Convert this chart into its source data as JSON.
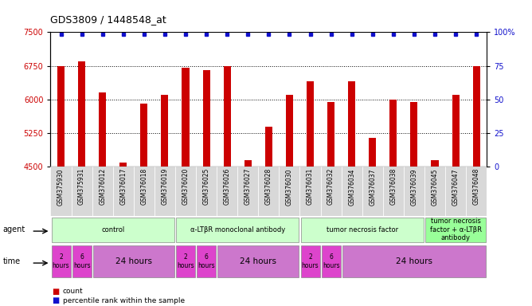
{
  "title": "GDS3809 / 1448548_at",
  "samples": [
    "GSM375930",
    "GSM375931",
    "GSM376012",
    "GSM376017",
    "GSM376018",
    "GSM376019",
    "GSM376020",
    "GSM376025",
    "GSM376026",
    "GSM376027",
    "GSM376028",
    "GSM376030",
    "GSM376031",
    "GSM376032",
    "GSM376034",
    "GSM376037",
    "GSM376038",
    "GSM376039",
    "GSM376045",
    "GSM376047",
    "GSM376048"
  ],
  "counts": [
    6750,
    6850,
    6150,
    4600,
    5900,
    6100,
    6700,
    6650,
    6750,
    4650,
    5400,
    6100,
    6400,
    5950,
    6400,
    5150,
    6000,
    5950,
    4650,
    6100,
    6750
  ],
  "bar_color": "#cc0000",
  "dot_color": "#1111cc",
  "ylim_left": [
    4500,
    7500
  ],
  "ylim_right": [
    0,
    100
  ],
  "yticks_left": [
    4500,
    5250,
    6000,
    6750,
    7500
  ],
  "yticks_right": [
    0,
    25,
    50,
    75,
    100
  ],
  "grid_lines": [
    5250,
    6000,
    6750
  ],
  "agent_groups": [
    {
      "label": "control",
      "start": 0,
      "end": 6,
      "color": "#ccffcc"
    },
    {
      "label": "α-LTβR monoclonal antibody",
      "start": 6,
      "end": 12,
      "color": "#ccffcc"
    },
    {
      "label": "tumor necrosis factor",
      "start": 12,
      "end": 18,
      "color": "#ccffcc"
    },
    {
      "label": "tumor necrosis\nfactor + α-LTβR\nantibody",
      "start": 18,
      "end": 21,
      "color": "#99ff99"
    }
  ],
  "time_groups": [
    {
      "label": "2\nhours",
      "start": 0,
      "end": 1,
      "small": true
    },
    {
      "label": "6\nhours",
      "start": 1,
      "end": 2,
      "small": true
    },
    {
      "label": "24 hours",
      "start": 2,
      "end": 6,
      "small": false
    },
    {
      "label": "2\nhours",
      "start": 6,
      "end": 7,
      "small": true
    },
    {
      "label": "6\nhours",
      "start": 7,
      "end": 8,
      "small": true
    },
    {
      "label": "24 hours",
      "start": 8,
      "end": 12,
      "small": false
    },
    {
      "label": "2\nhours",
      "start": 12,
      "end": 13,
      "small": true
    },
    {
      "label": "6\nhours",
      "start": 13,
      "end": 14,
      "small": true
    },
    {
      "label": "24 hours",
      "start": 14,
      "end": 21,
      "small": false
    }
  ],
  "small_time_color": "#dd44cc",
  "large_time_color": "#cc77cc",
  "plot_bg": "#f0f0f0",
  "xtick_bg": "#d8d8d8"
}
